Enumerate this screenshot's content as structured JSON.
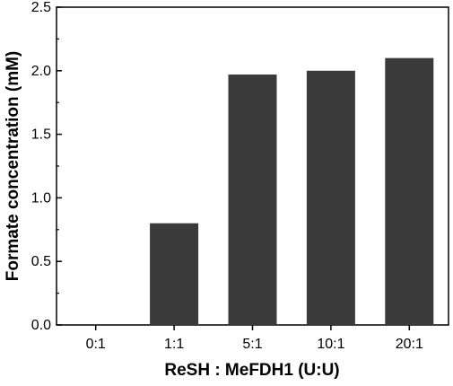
{
  "chart_data": {
    "type": "bar",
    "categories": [
      "0:1",
      "1:1",
      "5:1",
      "10:1",
      "20:1"
    ],
    "values": [
      0.0,
      0.8,
      1.97,
      2.0,
      2.1
    ],
    "xlabel": "ReSH : MeFDH1 (U:U)",
    "ylabel": "Formate concentration (mM)",
    "ylim": [
      0,
      2.5
    ],
    "yticks": [
      "0.0",
      "0.5",
      "1.0",
      "1.5",
      "2.0",
      "2.5"
    ],
    "bar_color": "#3a3a3a",
    "grid": false,
    "legend": "none"
  }
}
